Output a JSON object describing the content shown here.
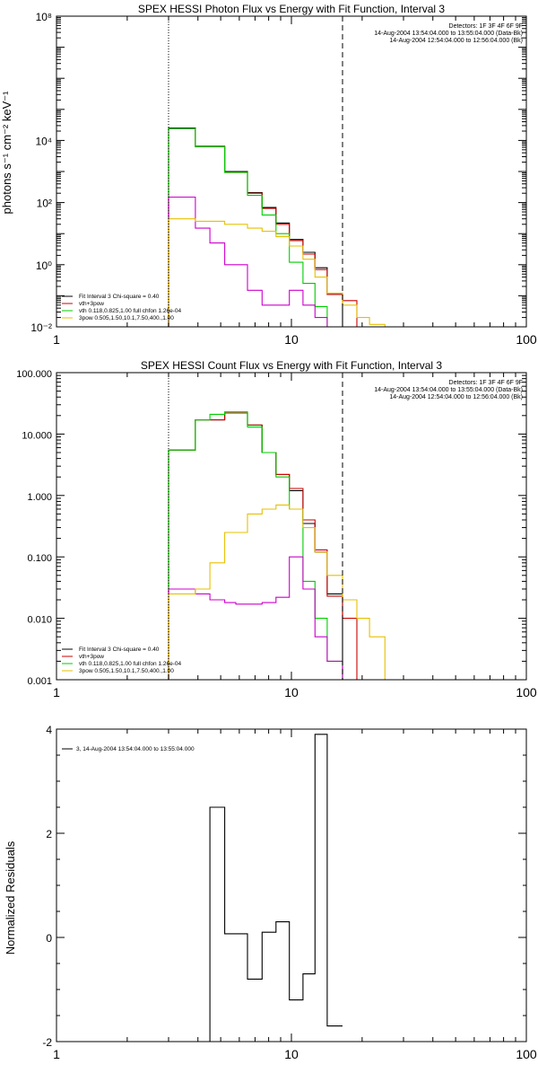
{
  "chart_data": [
    {
      "type": "line",
      "title": "SPEX HESSI Photon Flux vs Energy with Fit Function, Interval 3",
      "ylabel": "photons s⁻¹ cm⁻² keV⁻¹",
      "xlabel": "",
      "xscale": "log",
      "yscale": "log",
      "xlim": [
        1,
        100
      ],
      "ylim": [
        0.01,
        100000000
      ],
      "xticks": [
        {
          "value": 1,
          "label": "1"
        },
        {
          "value": 10,
          "label": "10"
        },
        {
          "value": 100,
          "label": "100"
        }
      ],
      "yticks": [
        {
          "value": 0.01,
          "label": "10⁻²"
        },
        {
          "value": 1,
          "label": "10⁰"
        },
        {
          "value": 100,
          "label": "10²"
        },
        {
          "value": 10000,
          "label": "10⁴"
        },
        {
          "value": 100000000,
          "label": "10⁸"
        }
      ],
      "vlines": [
        {
          "x": 3.0,
          "style": "dotted"
        },
        {
          "x": 16.5,
          "style": "dashed"
        }
      ],
      "info_text": [
        {
          "text": "Detectors: 1F 3F 4F 6F 9F",
          "color": "#000000"
        },
        {
          "text": "14-Aug-2004 13:54:04.000 to 13:55:04.000 (Data-Bk)",
          "color": "#000000"
        },
        {
          "text": "14-Aug-2004 12:54:04.000 to 12:56:04.000 (Bk)",
          "color": "#cc00cc"
        }
      ],
      "legend": [
        {
          "text": "Fit Interval 3   Chi-square = 0.40",
          "color": "#000000"
        },
        {
          "text": "vth+3pow",
          "color": "#cc0000"
        },
        {
          "text": "vth 0.118,0.825,1.00  full chfon 1.26e-04",
          "color": "#00cc00"
        },
        {
          "text": "3pow 0.505,1.50,10.1,7.50,400.,1.00",
          "color": "#e6c000"
        }
      ],
      "series": [
        {
          "color": "#000000",
          "edges": [
            3.0,
            3.9,
            5.2,
            6.5,
            7.5,
            8.6,
            9.8,
            11.2,
            12.6,
            14.2,
            16.5
          ],
          "values": [
            25000,
            6500,
            1000,
            210,
            70,
            22,
            6.5,
            2.5,
            0.8,
            0.12
          ]
        },
        {
          "color": "#cc0000",
          "edges": [
            3.0,
            3.9,
            5.2,
            6.5,
            7.5,
            8.6,
            9.8,
            11.2,
            12.6,
            14.2,
            16.5,
            19.0
          ],
          "values": [
            24000,
            6300,
            950,
            200,
            65,
            20,
            6,
            2.2,
            0.7,
            0.11,
            0.07
          ]
        },
        {
          "color": "#00cc00",
          "edges": [
            3.0,
            3.9,
            5.2,
            6.5,
            7.5,
            8.6,
            9.8,
            11.2,
            12.6,
            14.2
          ],
          "values": [
            24000,
            6200,
            930,
            170,
            40,
            10,
            1.2,
            0.25,
            0.045
          ]
        },
        {
          "color": "#cc00cc",
          "edges": [
            3.0,
            3.9,
            4.5,
            5.2,
            6.5,
            7.5,
            8.6,
            9.8,
            11.2,
            12.6,
            14.2,
            16.5
          ],
          "values": [
            150,
            15,
            5,
            1,
            0.15,
            0.05,
            0.05,
            0.15,
            0.05,
            0.02,
            0.01
          ]
        },
        {
          "color": "#e6c000",
          "edges": [
            3.0,
            3.9,
            5.2,
            6.5,
            7.5,
            8.6,
            9.8,
            11.2,
            12.6,
            14.2,
            16.5,
            19.0,
            21.5,
            25.0
          ],
          "values": [
            30,
            25,
            20,
            15,
            12,
            8,
            4,
            1.5,
            0.4,
            0.12,
            0.05,
            0.02,
            0.012
          ]
        }
      ]
    },
    {
      "type": "line",
      "title": "SPEX HESSI Count Flux vs Energy with Fit Function, Interval 3",
      "xlabel": "",
      "ylabel": "",
      "xscale": "log",
      "yscale": "log",
      "xlim": [
        1,
        100
      ],
      "ylim": [
        0.001,
        100
      ],
      "xticks": [
        {
          "value": 1,
          "label": "1"
        },
        {
          "value": 10,
          "label": "10"
        },
        {
          "value": 100,
          "label": "100"
        }
      ],
      "yticks": [
        {
          "value": 0.001,
          "label": "0.001"
        },
        {
          "value": 0.01,
          "label": "0.010"
        },
        {
          "value": 0.1,
          "label": "0.100"
        },
        {
          "value": 1,
          "label": "1.000"
        },
        {
          "value": 10,
          "label": "10.000"
        },
        {
          "value": 100,
          "label": "100.000"
        }
      ],
      "vlines": [
        {
          "x": 3.0,
          "style": "dotted"
        },
        {
          "x": 16.5,
          "style": "dashed"
        }
      ],
      "info_text": [
        {
          "text": "Detectors: 1F 3F 4F 6F 9F",
          "color": "#000000"
        },
        {
          "text": "14-Aug-2004 13:54:04.000 to 13:55:04.000 (Data-Bk)",
          "color": "#000000"
        },
        {
          "text": "14-Aug-2004 12:54:04.000 to 12:56:04.000 (Bk)",
          "color": "#cc00cc"
        }
      ],
      "legend": [
        {
          "text": "Fit Interval 3   Chi-square = 0.40",
          "color": "#000000"
        },
        {
          "text": "vth+3pow",
          "color": "#cc0000"
        },
        {
          "text": "vth 0.118,0.825,1.00  full chfon 1.26e-04",
          "color": "#00cc00"
        },
        {
          "text": "3pow 0.505,1.50,10.1,7.50,400.,1.00",
          "color": "#e6c000"
        }
      ],
      "series": [
        {
          "color": "#000000",
          "edges": [
            3.0,
            3.9,
            5.2,
            6.5,
            7.5,
            8.6,
            9.8,
            11.2,
            12.6,
            14.2,
            16.5
          ],
          "values": [
            5.5,
            17,
            22,
            14,
            5,
            2.2,
            1.2,
            0.35,
            0.12,
            0.025
          ]
        },
        {
          "color": "#cc0000",
          "edges": [
            3.0,
            3.9,
            5.2,
            6.5,
            7.5,
            8.6,
            9.8,
            11.2,
            12.6,
            14.2,
            16.5,
            19.0
          ],
          "values": [
            5.5,
            17,
            22,
            14,
            5,
            2.2,
            1.3,
            0.4,
            0.13,
            0.023,
            0.01
          ]
        },
        {
          "color": "#00cc00",
          "edges": [
            3.0,
            3.9,
            4.5,
            5.2,
            6.5,
            7.5,
            8.6,
            9.8,
            11.2,
            12.6,
            14.2,
            16.5
          ],
          "values": [
            5.5,
            17,
            21,
            23,
            13,
            5,
            2,
            0.6,
            0.04,
            0.01,
            0.002
          ]
        },
        {
          "color": "#cc00cc",
          "edges": [
            3.0,
            3.9,
            4.5,
            5.2,
            5.8,
            6.5,
            7.5,
            8.6,
            9.8,
            11.2,
            12.6,
            14.2,
            16.5
          ],
          "values": [
            0.03,
            0.025,
            0.02,
            0.018,
            0.017,
            0.017,
            0.018,
            0.022,
            0.1,
            0.03,
            0.005,
            0.002
          ]
        },
        {
          "color": "#e6c000",
          "edges": [
            3.0,
            3.9,
            4.5,
            5.2,
            6.5,
            7.5,
            8.6,
            9.8,
            11.2,
            12.6,
            14.2,
            16.5,
            19.0,
            21.5,
            25.0
          ],
          "values": [
            0.025,
            0.03,
            0.08,
            0.25,
            0.5,
            0.6,
            0.7,
            0.6,
            0.3,
            0.12,
            0.05,
            0.02,
            0.01,
            0.005
          ]
        }
      ]
    },
    {
      "type": "line",
      "title": "",
      "ylabel": "Normalized Residuals",
      "xlabel": "",
      "xscale": "log",
      "yscale": "linear",
      "xlim": [
        1,
        100
      ],
      "ylim": [
        -2,
        4
      ],
      "xticks": [
        {
          "value": 1,
          "label": "1"
        },
        {
          "value": 10,
          "label": "10"
        },
        {
          "value": 100,
          "label": "100"
        }
      ],
      "yticks": [
        {
          "value": -2,
          "label": "-2"
        },
        {
          "value": 0,
          "label": "0"
        },
        {
          "value": 2,
          "label": "2"
        },
        {
          "value": 4,
          "label": "4"
        }
      ],
      "legend": [
        {
          "text": "3, 14-Aug-2004 13:54:04.000 to 13:55:04.000",
          "color": "#000000"
        }
      ],
      "series": [
        {
          "color": "#000000",
          "edges": [
            3.0,
            4.5,
            5.2,
            6.5,
            7.5,
            8.6,
            9.8,
            11.2,
            12.6,
            14.2,
            16.5
          ],
          "values": [
            -2.0,
            2.5,
            0.07,
            -0.8,
            0.1,
            0.3,
            -1.2,
            -0.7,
            3.9,
            -1.7
          ]
        }
      ]
    }
  ]
}
